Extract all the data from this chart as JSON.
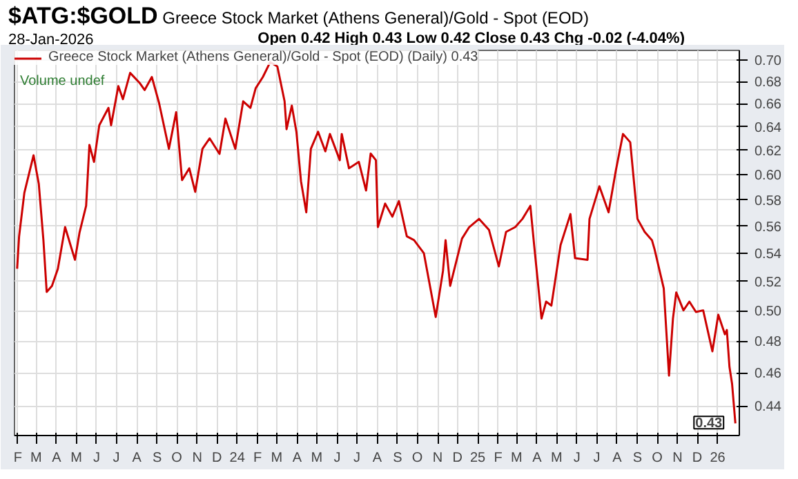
{
  "chart_data": {
    "type": "line",
    "title": "$ATG:$GOLD",
    "subtitle": "Greece Stock Market (Athens General)/Gold - Spot (EOD)",
    "annotations": [
      "28-Jan-2026",
      "Open 0.42 High 0.43 Low 0.42 Close 0.43 Chg -0.02 (-4.04%)",
      "Volume undef",
      {
        "text": "0.43",
        "x": "2026-01-28",
        "y": 0.43
      }
    ],
    "x": [
      "2023-01-31",
      "2023-02-03",
      "2023-02-11",
      "2023-02-25",
      "2023-03-05",
      "2023-03-12",
      "2023-03-17",
      "2023-03-25",
      "2023-04-03",
      "2023-04-14",
      "2023-04-29",
      "2023-05-06",
      "2023-05-16",
      "2023-05-21",
      "2023-05-28",
      "2023-06-05",
      "2023-06-19",
      "2023-06-23",
      "2023-07-04",
      "2023-07-11",
      "2023-07-22",
      "2023-08-06",
      "2023-08-13",
      "2023-08-24",
      "2023-09-04",
      "2023-09-19",
      "2023-09-30",
      "2023-10-09",
      "2023-10-20",
      "2023-10-29",
      "2023-11-09",
      "2023-11-20",
      "2023-12-05",
      "2023-12-14",
      "2023-12-29",
      "2024-01-10",
      "2024-01-21",
      "2024-01-29",
      "2024-02-09",
      "2024-02-20",
      "2024-03-02",
      "2024-03-13",
      "2024-03-16",
      "2024-03-24",
      "2024-03-31",
      "2024-04-07",
      "2024-04-15",
      "2024-04-22",
      "2024-05-03",
      "2024-05-14",
      "2024-05-21",
      "2024-06-05",
      "2024-06-08",
      "2024-06-19",
      "2024-07-04",
      "2024-07-15",
      "2024-07-22",
      "2024-07-30",
      "2024-08-02",
      "2024-08-13",
      "2024-08-24",
      "2024-09-03",
      "2024-09-15",
      "2024-09-26",
      "2024-10-11",
      "2024-10-29",
      "2024-11-09",
      "2024-11-13",
      "2024-11-20",
      "2024-12-08",
      "2024-12-19",
      "2025-01-03",
      "2025-01-18",
      "2025-02-02",
      "2025-02-13",
      "2025-02-27",
      "2025-03-10",
      "2025-03-22",
      "2025-03-28",
      "2025-04-08",
      "2025-04-15",
      "2025-04-23",
      "2025-05-07",
      "2025-05-22",
      "2025-05-29",
      "2025-06-17",
      "2025-06-20",
      "2025-07-05",
      "2025-07-19",
      "2025-07-30",
      "2025-08-10",
      "2025-08-21",
      "2025-09-01",
      "2025-09-12",
      "2025-09-23",
      "2025-09-27",
      "2025-10-11",
      "2025-10-19",
      "2025-10-25",
      "2025-10-30",
      "2025-11-10",
      "2025-11-19",
      "2025-11-29",
      "2025-12-10",
      "2025-12-24",
      "2026-01-02",
      "2026-01-12",
      "2026-01-15",
      "2026-01-19",
      "2026-01-23",
      "2026-01-28"
    ],
    "series": [
      {
        "name": "Greece Stock Market (Athens General)/Gold - Spot (EOD) (Daily) 0.43",
        "color": "#cc0000",
        "values": [
          0.529,
          0.5525,
          0.5857,
          0.616,
          0.5927,
          0.5497,
          0.5128,
          0.517,
          0.529,
          0.5594,
          0.5354,
          0.5554,
          0.5756,
          0.6246,
          0.6105,
          0.6413,
          0.6564,
          0.6413,
          0.6759,
          0.6641,
          0.6879,
          0.6783,
          0.6723,
          0.6842,
          0.6607,
          0.6213,
          0.6526,
          0.5958,
          0.6053,
          0.5865,
          0.6213,
          0.6301,
          0.6171,
          0.647,
          0.6213,
          0.6622,
          0.6564,
          0.6739,
          0.6842,
          0.6979,
          0.6939,
          0.6622,
          0.6379,
          0.6584,
          0.6357,
          0.5948,
          0.5706,
          0.6213,
          0.6357,
          0.6192,
          0.6338,
          0.6119,
          0.6338,
          0.6053,
          0.6105,
          0.5875,
          0.6174,
          0.6119,
          0.5594,
          0.5773,
          0.5673,
          0.5793,
          0.5525,
          0.5497,
          0.5401,
          0.4959,
          0.5273,
          0.5497,
          0.517,
          0.5509,
          0.5594,
          0.5656,
          0.5574,
          0.5307,
          0.5558,
          0.5594,
          0.5656,
          0.5756,
          0.5449,
          0.4948,
          0.5062,
          0.5035,
          0.5461,
          0.5693,
          0.5366,
          0.5354,
          0.5656,
          0.5909,
          0.5706,
          0.6032,
          0.6338,
          0.6268,
          0.5656,
          0.5558,
          0.5497,
          0.543,
          0.5152,
          0.4584,
          0.4948,
          0.5125,
          0.5003,
          0.5062,
          0.4992,
          0.5003,
          0.4736,
          0.4974,
          0.4845,
          0.4873,
          0.4638,
          0.4533,
          0.43
        ]
      }
    ],
    "xlim": [
      "2023-01-27",
      "2026-02-03"
    ],
    "xticks": [
      {
        "value": "2023-02-01",
        "label": "F"
      },
      {
        "value": "2023-03-01",
        "label": "M"
      },
      {
        "value": "2023-04-01",
        "label": "A"
      },
      {
        "value": "2023-05-01",
        "label": "M"
      },
      {
        "value": "2023-06-01",
        "label": "J"
      },
      {
        "value": "2023-07-01",
        "label": "J"
      },
      {
        "value": "2023-08-01",
        "label": "A"
      },
      {
        "value": "2023-09-01",
        "label": "S"
      },
      {
        "value": "2023-10-01",
        "label": "O"
      },
      {
        "value": "2023-11-01",
        "label": "N"
      },
      {
        "value": "2023-12-01",
        "label": "D"
      },
      {
        "value": "2024-01-01",
        "label": "24"
      },
      {
        "value": "2024-02-01",
        "label": "F"
      },
      {
        "value": "2024-03-01",
        "label": "M"
      },
      {
        "value": "2024-04-01",
        "label": "A"
      },
      {
        "value": "2024-05-01",
        "label": "M"
      },
      {
        "value": "2024-06-01",
        "label": "J"
      },
      {
        "value": "2024-07-01",
        "label": "J"
      },
      {
        "value": "2024-08-01",
        "label": "A"
      },
      {
        "value": "2024-09-01",
        "label": "S"
      },
      {
        "value": "2024-10-01",
        "label": "O"
      },
      {
        "value": "2024-11-01",
        "label": "N"
      },
      {
        "value": "2024-12-01",
        "label": "D"
      },
      {
        "value": "2025-01-01",
        "label": "25"
      },
      {
        "value": "2025-02-01",
        "label": "F"
      },
      {
        "value": "2025-03-01",
        "label": "M"
      },
      {
        "value": "2025-04-01",
        "label": "A"
      },
      {
        "value": "2025-05-01",
        "label": "M"
      },
      {
        "value": "2025-06-01",
        "label": "J"
      },
      {
        "value": "2025-07-01",
        "label": "J"
      },
      {
        "value": "2025-08-01",
        "label": "A"
      },
      {
        "value": "2025-09-01",
        "label": "S"
      },
      {
        "value": "2025-10-01",
        "label": "O"
      },
      {
        "value": "2025-11-01",
        "label": "N"
      },
      {
        "value": "2025-12-01",
        "label": "D"
      },
      {
        "value": "2026-01-01",
        "label": "26"
      }
    ],
    "ylim": [
      0.423,
      0.709
    ],
    "yticks": [
      0.44,
      0.46,
      0.48,
      {
        "value": 0.5,
        "label": "0.50"
      },
      0.52,
      0.54,
      0.56,
      0.58,
      {
        "value": 0.6,
        "label": "0.60"
      },
      0.62,
      0.64,
      0.66,
      0.68,
      {
        "value": 0.7,
        "label": "0.70"
      }
    ],
    "log": true,
    "grid": true,
    "legend": "top left",
    "marker": "none",
    "line_style": "solid"
  }
}
